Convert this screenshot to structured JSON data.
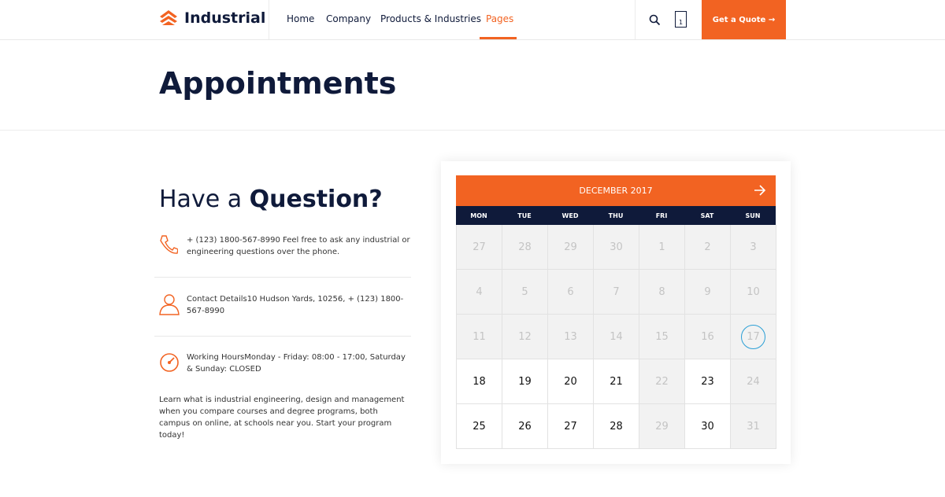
{
  "header": {
    "logo": "Industrial",
    "nav": [
      "Home",
      "Company",
      "Products & Industries",
      "Pages"
    ],
    "cart_count": "1",
    "button": "Get a Quote →"
  },
  "page_title": "Appointments",
  "contact": {
    "heading_light": "Have a",
    "heading_bold": "Question?",
    "items": [
      "+ (123) 1800-567-8990 Feel free to ask any industrial or engineering questions over the phone.",
      "Contact Details10 Hudson Yards, 10256, + (123) 1800-567-8990",
      "Working HoursMonday - Friday: 08:00 - 17:00, Saturday & Sunday: CLOSED"
    ],
    "paragraph": "Learn what is industrial engineering, design and management when you compare courses and degree programs, both campus on online, at schools near you. Start your program today!"
  },
  "calendar": {
    "month": "DECEMBER 2017",
    "weekdays": [
      "MON",
      "TUE",
      "WED",
      "THU",
      "FRI",
      "SAT",
      "SUN"
    ],
    "weeks": [
      [
        27,
        28,
        29,
        30,
        1,
        2,
        3
      ],
      [
        4,
        5,
        6,
        7,
        8,
        9,
        10
      ],
      [
        11,
        12,
        13,
        14,
        15,
        16,
        17
      ],
      [
        18,
        19,
        20,
        21,
        22,
        23,
        24
      ],
      [
        25,
        26,
        27,
        28,
        29,
        30,
        31
      ]
    ]
  }
}
